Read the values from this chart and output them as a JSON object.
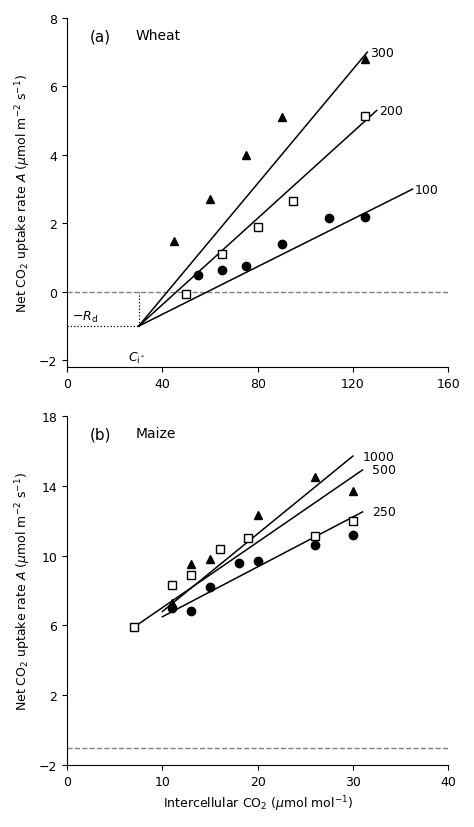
{
  "panel_a": {
    "title": "Wheat",
    "label": "(a)",
    "xlim": [
      0,
      160
    ],
    "ylim": [
      -2.2,
      8
    ],
    "xticks": [
      0,
      40,
      80,
      120,
      160
    ],
    "yticks": [
      -2,
      0,
      2,
      4,
      6,
      8
    ],
    "series": [
      {
        "label": "300",
        "marker": "^",
        "filled": true,
        "x": [
          45,
          60,
          75,
          90,
          125
        ],
        "y": [
          1.5,
          2.7,
          4.0,
          5.1,
          6.8
        ],
        "line_x": [
          30,
          126
        ],
        "line_y": [
          -1.0,
          7.0
        ]
      },
      {
        "label": "200",
        "marker": "s",
        "filled": false,
        "x": [
          50,
          65,
          80,
          95,
          125
        ],
        "y": [
          -0.05,
          1.1,
          1.9,
          2.65,
          5.15
        ],
        "line_x": [
          30,
          130
        ],
        "line_y": [
          -1.0,
          5.3
        ]
      },
      {
        "label": "100",
        "marker": "o",
        "filled": true,
        "x": [
          55,
          65,
          75,
          90,
          110,
          125
        ],
        "y": [
          0.5,
          0.65,
          0.75,
          1.4,
          2.15,
          2.2
        ],
        "line_x": [
          30,
          145
        ],
        "line_y": [
          -1.0,
          3.0
        ]
      }
    ],
    "Rd_y": -1.0,
    "Ci_x": 30,
    "dashed_y": 0
  },
  "panel_b": {
    "title": "Maize",
    "label": "(b)",
    "xlim": [
      0,
      40
    ],
    "ylim": [
      -2,
      18
    ],
    "xticks": [
      0,
      10,
      20,
      30,
      40
    ],
    "yticks": [
      -2,
      2,
      6,
      10,
      14,
      18
    ],
    "series": [
      {
        "label": "1000",
        "marker": "^",
        "filled": true,
        "x": [
          11,
          13,
          15,
          20,
          26,
          30
        ],
        "y": [
          7.3,
          9.5,
          9.8,
          12.3,
          14.5,
          13.7
        ],
        "line_x": [
          10,
          30
        ],
        "line_y": [
          6.8,
          15.7
        ]
      },
      {
        "label": "500",
        "marker": "s",
        "filled": false,
        "x": [
          7,
          11,
          13,
          16,
          19,
          26,
          30
        ],
        "y": [
          5.9,
          8.3,
          8.9,
          10.4,
          11.0,
          11.1,
          12.0
        ],
        "line_x": [
          7,
          31
        ],
        "line_y": [
          5.9,
          14.9
        ]
      },
      {
        "label": "250",
        "marker": "o",
        "filled": true,
        "x": [
          11,
          13,
          15,
          18,
          20,
          26,
          30
        ],
        "y": [
          7.0,
          6.85,
          8.2,
          9.6,
          9.7,
          10.6,
          11.2
        ],
        "line_x": [
          10,
          31
        ],
        "line_y": [
          6.5,
          12.5
        ]
      }
    ],
    "dashed_y": -1.0
  },
  "xlabel": "Intercellular CO₂ (μmol mol⁻¹)",
  "ylabel": "Net CO₂ uptake rate A (μmol m⁻² s⁻¹)"
}
